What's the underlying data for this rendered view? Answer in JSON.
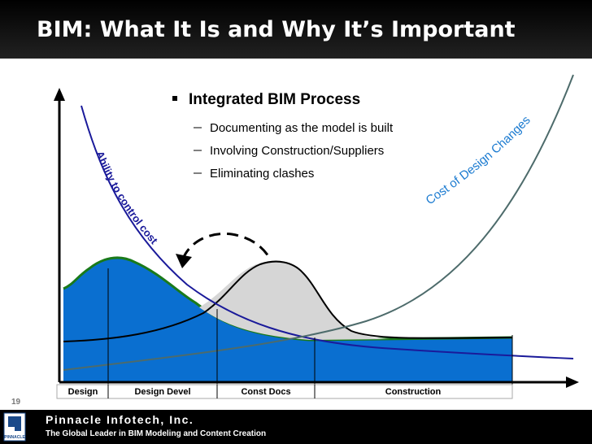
{
  "header": {
    "title": "BIM:  What It Is and Why It’s Important"
  },
  "bullets": {
    "heading": "Integrated BIM Process",
    "items": [
      "Documenting as the model is built",
      "Involving Construction/Suppliers",
      "Eliminating clashes"
    ]
  },
  "curves": {
    "ability": "Ability   to   control   cost",
    "cost": "Cost   of   Design   Changes"
  },
  "phases": [
    "Design",
    "Design Devel",
    "Const Docs",
    "Construction"
  ],
  "page_number": "19",
  "footer": {
    "company": "Pinnacle Infotech, Inc.",
    "tagline": "The Global Leader in BIM Modeling and Content Creation",
    "logo": "PINNACLE"
  }
}
